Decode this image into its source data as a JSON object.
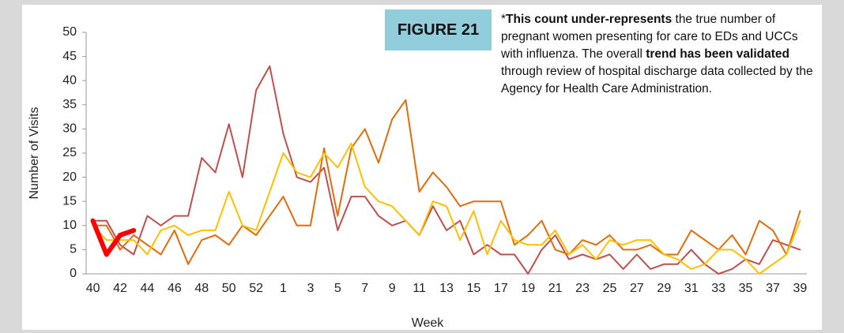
{
  "chart_data": {
    "type": "line",
    "figure_label": "FIGURE 21",
    "note_parts": [
      {
        "text": "*"
      },
      {
        "text": "This count under-represents",
        "bold": true
      },
      {
        "text": " the true number of pregnant women presenting for care to EDs and UCCs with influenza. The overall "
      },
      {
        "text": "trend has been validated",
        "bold": true
      },
      {
        "text": " through review of hospital discharge data collected by the Agency for Health Care Administration."
      }
    ],
    "x_label": "Week",
    "y_label": "Number of Visits",
    "categories": [
      "40",
      null,
      "42",
      null,
      "44",
      null,
      "46",
      null,
      "48",
      null,
      "50",
      null,
      "52",
      null,
      "1",
      null,
      "3",
      null,
      "5",
      null,
      "7",
      null,
      "9",
      null,
      "11",
      null,
      "13",
      null,
      "15",
      null,
      "17",
      null,
      "19",
      null,
      "21",
      null,
      "23",
      null,
      "25",
      null,
      "27",
      null,
      "29",
      null,
      "31",
      null,
      "33",
      null,
      "35",
      null,
      "37",
      null,
      "39"
    ],
    "ylim": [
      0,
      50
    ],
    "yticks": [
      0,
      5,
      10,
      15,
      20,
      25,
      30,
      35,
      40,
      45,
      50
    ],
    "series": [
      {
        "color": "#c0504d",
        "width": 2,
        "values": [
          11,
          11,
          6,
          4,
          12,
          10,
          12,
          12,
          24,
          21,
          31,
          20,
          38,
          43,
          29,
          20,
          19,
          22,
          9,
          16,
          16,
          12,
          10,
          11,
          8,
          14,
          9,
          11,
          4,
          6,
          4,
          4,
          0,
          5,
          8,
          3,
          4,
          3,
          4,
          1,
          4,
          1,
          2,
          2,
          5,
          2,
          0,
          1,
          3,
          2,
          7,
          6,
          5
        ]
      },
      {
        "color": "#e46c0a",
        "width": 2,
        "values": [
          10,
          10,
          5,
          8,
          6,
          4,
          9,
          2,
          7,
          8,
          6,
          10,
          8,
          12,
          16,
          10,
          10,
          26,
          12,
          26,
          30,
          23,
          32,
          36,
          17,
          21,
          18,
          14,
          15,
          15,
          15,
          6,
          8,
          11,
          5,
          4,
          7,
          6,
          8,
          5,
          5,
          6,
          4,
          4,
          9,
          7,
          5,
          8,
          4,
          11,
          9,
          4,
          13
        ]
      },
      {
        "color": "#ffc000",
        "width": 2,
        "values": [
          10,
          7,
          7,
          7,
          4,
          9,
          10,
          8,
          9,
          9,
          17,
          10,
          9,
          17,
          25,
          21,
          20,
          25,
          22,
          27,
          18,
          15,
          14,
          11,
          8,
          15,
          14,
          7,
          13,
          4,
          11,
          7,
          6,
          6,
          9,
          4,
          6,
          3,
          7,
          6,
          7,
          7,
          4,
          3,
          1,
          2,
          5,
          5,
          3,
          0,
          2,
          4,
          11
        ]
      },
      {
        "color": "#ff0000",
        "width": 6,
        "values": [
          11,
          4,
          8,
          9,
          null,
          null,
          null,
          null,
          null,
          null,
          null,
          null,
          null,
          null,
          null,
          null,
          null,
          null,
          null,
          null,
          null,
          null,
          null,
          null,
          null,
          null,
          null,
          null,
          null,
          null,
          null,
          null,
          null,
          null,
          null,
          null,
          null,
          null,
          null,
          null,
          null,
          null,
          null,
          null,
          null,
          null,
          null,
          null,
          null,
          null,
          null,
          null,
          null
        ]
      }
    ]
  }
}
